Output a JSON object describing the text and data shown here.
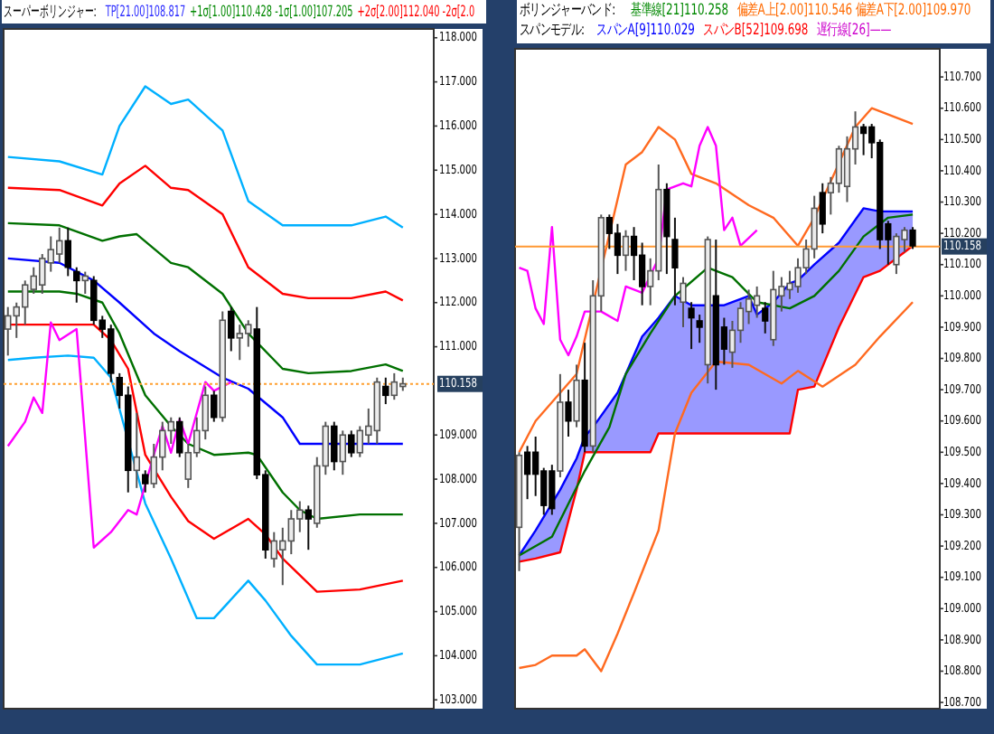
{
  "chart_data": [
    {
      "type": "candlestick",
      "title": "スーパーボリンジャー:",
      "annotations": [
        "TP[21.00]108.817",
        "+1σ[1.00]110.428 -1σ[1.00]107.205",
        "+2σ[2.00]112.040 -2σ[2.0"
      ],
      "categories": [
        null,
        null,
        null,
        null,
        null,
        null,
        null,
        null,
        null,
        null,
        null,
        null,
        null,
        null,
        null,
        null,
        null,
        null,
        null,
        null,
        null,
        null,
        null,
        null,
        null,
        null,
        null,
        null,
        null,
        null,
        null,
        null,
        null,
        null,
        null,
        null,
        null,
        null,
        null,
        null,
        null,
        null,
        null,
        null,
        null,
        null,
        null
      ],
      "ohlc": [
        [
          111.4,
          111.9,
          110.8,
          111.7
        ],
        [
          111.7,
          112.0,
          111.2,
          111.9
        ],
        [
          111.9,
          112.5,
          111.5,
          112.4
        ],
        [
          112.3,
          112.8,
          112.2,
          112.6
        ],
        [
          112.4,
          113.1,
          112.2,
          113.0
        ],
        [
          112.9,
          113.5,
          112.7,
          113.2
        ],
        [
          113.1,
          113.7,
          112.9,
          113.4
        ],
        [
          113.4,
          113.7,
          112.6,
          112.8
        ],
        [
          112.7,
          112.8,
          112.0,
          112.5
        ],
        [
          112.5,
          112.7,
          112.2,
          112.6
        ],
        [
          112.5,
          112.6,
          111.5,
          111.6
        ],
        [
          111.6,
          111.7,
          111.2,
          111.4
        ],
        [
          111.4,
          111.5,
          110.2,
          110.4
        ],
        [
          110.3,
          110.4,
          109.6,
          109.9
        ],
        [
          109.9,
          110.1,
          107.7,
          108.2
        ],
        [
          108.2,
          109.5,
          107.8,
          108.5
        ],
        [
          108.1,
          108.2,
          107.7,
          107.9
        ],
        [
          107.9,
          108.8,
          107.8,
          108.5
        ],
        [
          108.5,
          109.3,
          108.2,
          109.1
        ],
        [
          109.1,
          109.4,
          108.8,
          109.3
        ],
        [
          109.3,
          109.4,
          108.5,
          108.6
        ],
        [
          108.0,
          108.8,
          107.8,
          108.6
        ],
        [
          108.6,
          109.4,
          108.5,
          109.1
        ],
        [
          109.1,
          110.1,
          108.9,
          109.9
        ],
        [
          109.9,
          110.0,
          109.3,
          109.4
        ],
        [
          109.4,
          111.8,
          109.3,
          111.6
        ],
        [
          111.8,
          111.9,
          110.9,
          111.2
        ],
        [
          111.2,
          111.5,
          110.7,
          111.3
        ],
        [
          111.3,
          111.6,
          111.0,
          111.5
        ],
        [
          111.4,
          111.9,
          108.0,
          108.1
        ],
        [
          108.1,
          108.2,
          106.2,
          106.4
        ],
        [
          106.2,
          106.8,
          106.0,
          106.6
        ],
        [
          106.4,
          106.9,
          105.6,
          106.6
        ],
        [
          106.6,
          107.3,
          106.3,
          107.1
        ],
        [
          107.1,
          107.5,
          106.8,
          107.3
        ],
        [
          107.3,
          107.4,
          106.4,
          107.1
        ],
        [
          107.0,
          108.5,
          106.9,
          108.3
        ],
        [
          108.3,
          109.3,
          108.1,
          109.2
        ],
        [
          109.2,
          109.3,
          108.2,
          108.4
        ],
        [
          108.4,
          109.1,
          108.1,
          109.0
        ],
        [
          109.0,
          109.1,
          108.5,
          108.6
        ],
        [
          108.6,
          109.2,
          108.5,
          109.1
        ],
        [
          109.0,
          109.6,
          108.8,
          109.2
        ],
        [
          109.1,
          110.3,
          108.8,
          110.2
        ],
        [
          110.1,
          110.3,
          109.7,
          109.9
        ],
        [
          109.9,
          110.4,
          109.8,
          110.2
        ],
        [
          110.1,
          110.3,
          110.0,
          110.16
        ]
      ],
      "series": [
        {
          "type": "line",
          "color": "#00b0ff",
          "values": [
            115.3,
            null,
            null,
            null,
            null,
            null,
            115.2,
            null,
            null,
            null,
            null,
            114.9,
            null,
            116.0,
            null,
            null,
            116.9,
            null,
            null,
            116.5,
            null,
            116.6,
            null,
            null,
            null,
            115.9,
            null,
            null,
            114.3,
            null,
            null,
            null,
            113.75,
            null,
            null,
            113.75,
            null,
            null,
            null,
            null,
            113.75,
            null,
            null,
            null,
            113.95,
            null,
            113.7
          ]
        },
        {
          "type": "line",
          "color": "#ff0000",
          "values": [
            114.6,
            null,
            null,
            null,
            null,
            null,
            114.55,
            null,
            null,
            null,
            null,
            114.2,
            null,
            114.7,
            null,
            null,
            115.1,
            null,
            null,
            114.6,
            null,
            114.55,
            null,
            null,
            null,
            114.0,
            null,
            null,
            112.8,
            null,
            null,
            null,
            112.2,
            null,
            null,
            112.1,
            null,
            null,
            null,
            null,
            112.1,
            null,
            null,
            null,
            112.25,
            null,
            112.05
          ]
        },
        {
          "type": "line",
          "color": "#007000",
          "values": [
            113.8,
            null,
            null,
            null,
            null,
            null,
            113.75,
            null,
            null,
            null,
            null,
            113.4,
            null,
            113.5,
            null,
            113.55,
            null,
            null,
            null,
            112.9,
            null,
            112.8,
            null,
            null,
            null,
            112.2,
            null,
            null,
            111.3,
            null,
            null,
            null,
            110.5,
            null,
            null,
            110.4,
            null,
            null,
            null,
            null,
            110.45,
            null,
            null,
            null,
            110.6,
            null,
            110.45
          ]
        },
        {
          "type": "line",
          "color": "#0000ff",
          "values": [
            113.0,
            null,
            null,
            null,
            null,
            null,
            112.9,
            null,
            null,
            null,
            112.5,
            null,
            null,
            112.0,
            null,
            null,
            null,
            111.3,
            null,
            null,
            110.9,
            null,
            null,
            null,
            null,
            110.3,
            null,
            null,
            110.05,
            null,
            null,
            null,
            109.4,
            null,
            108.8,
            null,
            null,
            108.8,
            null,
            null,
            null,
            108.8,
            null,
            null,
            null,
            null,
            108.8
          ]
        },
        {
          "type": "line",
          "color": "#007000",
          "values": [
            112.25,
            null,
            null,
            null,
            null,
            null,
            112.25,
            null,
            112.2,
            null,
            null,
            112.0,
            null,
            111.3,
            null,
            null,
            109.9,
            null,
            null,
            109.2,
            null,
            108.8,
            null,
            null,
            108.55,
            null,
            null,
            null,
            108.6,
            108.55,
            null,
            null,
            107.7,
            null,
            107.3,
            null,
            107.1,
            null,
            null,
            null,
            null,
            107.2,
            null,
            null,
            null,
            null,
            107.2
          ]
        },
        {
          "type": "line",
          "color": "#ff0000",
          "values": [
            111.5,
            null,
            null,
            null,
            null,
            null,
            111.5,
            null,
            null,
            null,
            111.5,
            null,
            111.15,
            null,
            110.5,
            null,
            108.55,
            null,
            null,
            107.6,
            null,
            107.05,
            null,
            null,
            106.65,
            null,
            null,
            null,
            107.1,
            null,
            106.75,
            null,
            106.2,
            null,
            null,
            null,
            105.45,
            null,
            null,
            null,
            null,
            105.5,
            null,
            null,
            null,
            null,
            105.7
          ]
        },
        {
          "type": "line",
          "color": "#00b0ff",
          "values": [
            110.7,
            null,
            null,
            110.75,
            null,
            null,
            null,
            110.8,
            null,
            null,
            110.75,
            null,
            110.3,
            null,
            null,
            null,
            107.45,
            null,
            null,
            106.2,
            null,
            null,
            104.85,
            null,
            104.85,
            null,
            null,
            null,
            105.7,
            null,
            105.25,
            null,
            null,
            104.45,
            null,
            null,
            103.8,
            null,
            null,
            null,
            null,
            103.8,
            null,
            null,
            null,
            null,
            104.05
          ]
        },
        {
          "type": "line",
          "color": "#ff00ff",
          "values": [
            108.75,
            null,
            109.3,
            109.85,
            109.5,
            111.55,
            111.15,
            null,
            111.4,
            null,
            106.45,
            null,
            106.8,
            null,
            107.3,
            107.2,
            null,
            108.55,
            109.2,
            108.6,
            109.35,
            108.8,
            null,
            110.2,
            110.0,
            null,
            110.2,
            null,
            null,
            null,
            null,
            null,
            null,
            null,
            null,
            null,
            null,
            null,
            null,
            null,
            null,
            null,
            null,
            null,
            null,
            null,
            null
          ]
        }
      ],
      "ref_lines": [
        {
          "axis": "y",
          "value": 110.158,
          "label": "110.158",
          "color": "#ffa030",
          "line_style": "dotted"
        }
      ],
      "ylim": [
        102.8,
        118.2
      ],
      "yticks": [
        {
          "value": 103,
          "label": "103.000"
        },
        {
          "value": 104,
          "label": "104.000"
        },
        {
          "value": 105,
          "label": "105.000"
        },
        {
          "value": 106,
          "label": "106.000"
        },
        {
          "value": 107,
          "label": "107.000"
        },
        {
          "value": 108,
          "label": "108.000"
        },
        {
          "value": 109,
          "label": "109.000"
        },
        {
          "value": 111,
          "label": "111.000"
        },
        {
          "value": 112,
          "label": "112.000"
        },
        {
          "value": 113,
          "label": "113.000"
        },
        {
          "value": 114,
          "label": "114.000"
        },
        {
          "value": 115,
          "label": "115.000"
        },
        {
          "value": 116,
          "label": "116.000"
        },
        {
          "value": 117,
          "label": "117.000"
        },
        {
          "value": 118,
          "label": "118.000"
        }
      ],
      "tick_labels": "y"
    },
    {
      "type": "candlestick",
      "title": "ボリンジャーバンド:",
      "subtitle": "スパンモデル:",
      "annotations": [
        "基準線[21]110.258",
        "偏差A上[2.00]110.546 偏差A下[2.00]109.970",
        "スパンA[9]110.029",
        "スパンB[52]109.698",
        "遅行線[26]——"
      ],
      "categories": [
        null,
        null,
        null,
        null,
        null,
        null,
        null,
        null,
        null,
        null,
        null,
        null,
        null,
        null,
        null,
        null,
        null,
        null,
        null,
        null,
        null,
        null,
        null,
        null,
        null,
        null,
        null,
        null,
        null,
        null,
        null,
        null,
        null,
        null,
        null,
        null,
        null,
        null,
        null,
        null,
        null,
        null,
        null,
        null,
        null,
        null,
        null,
        null,
        null
      ],
      "ohlc": [
        [
          109.26,
          109.5,
          109.12,
          109.49
        ],
        [
          109.5,
          109.52,
          109.35,
          109.43
        ],
        [
          109.5,
          109.55,
          109.36,
          109.43
        ],
        [
          109.44,
          109.45,
          109.3,
          109.33
        ],
        [
          109.44,
          109.46,
          109.3,
          109.32
        ],
        [
          109.44,
          109.75,
          109.42,
          109.66
        ],
        [
          109.66,
          109.7,
          109.55,
          109.6
        ],
        [
          109.6,
          109.78,
          109.58,
          109.73
        ],
        [
          109.73,
          109.85,
          109.5,
          109.52
        ],
        [
          109.52,
          110.05,
          109.5,
          110.0
        ],
        [
          110.0,
          110.26,
          109.95,
          110.25
        ],
        [
          110.25,
          110.26,
          110.15,
          110.2
        ],
        [
          110.2,
          110.23,
          110.07,
          110.13
        ],
        [
          110.13,
          110.21,
          110.08,
          110.19
        ],
        [
          110.19,
          110.22,
          110.05,
          110.13
        ],
        [
          110.13,
          110.17,
          109.97,
          110.03
        ],
        [
          110.03,
          110.12,
          109.97,
          110.08
        ],
        [
          110.08,
          110.42,
          110.05,
          110.34
        ],
        [
          110.34,
          110.36,
          110.07,
          110.19
        ],
        [
          110.18,
          110.25,
          109.97,
          110.09
        ],
        [
          109.98,
          110.06,
          109.9,
          110.04
        ],
        [
          109.96,
          109.98,
          109.83,
          109.93
        ],
        [
          109.92,
          109.94,
          109.85,
          109.9
        ],
        [
          109.78,
          110.19,
          109.72,
          110.18
        ],
        [
          110.0,
          110.18,
          109.7,
          109.78
        ],
        [
          109.9,
          109.93,
          109.78,
          109.83
        ],
        [
          109.82,
          109.92,
          109.77,
          109.89
        ],
        [
          109.89,
          109.98,
          109.85,
          109.96
        ],
        [
          109.95,
          110.02,
          109.91,
          109.99
        ],
        [
          109.97,
          110.03,
          109.93,
          110.0
        ],
        [
          109.96,
          109.98,
          109.88,
          109.92
        ],
        [
          109.86,
          110.08,
          109.84,
          110.02
        ],
        [
          110.0,
          110.06,
          109.95,
          110.03
        ],
        [
          110.02,
          110.08,
          109.99,
          110.04
        ],
        [
          110.03,
          110.12,
          110.01,
          110.09
        ],
        [
          110.09,
          110.18,
          110.07,
          110.15
        ],
        [
          110.15,
          110.32,
          110.12,
          110.28
        ],
        [
          110.33,
          110.36,
          110.2,
          110.23
        ],
        [
          110.33,
          110.38,
          110.26,
          110.36
        ],
        [
          110.36,
          110.48,
          110.33,
          110.47
        ],
        [
          110.35,
          110.51,
          110.3,
          110.47
        ],
        [
          110.47,
          110.59,
          110.42,
          110.54
        ],
        [
          110.54,
          110.55,
          110.45,
          110.52
        ],
        [
          110.54,
          110.55,
          110.44,
          110.49
        ],
        [
          110.49,
          110.5,
          110.15,
          110.18
        ],
        [
          110.23,
          110.24,
          110.1,
          110.18
        ],
        [
          110.1,
          110.2,
          110.07,
          110.19
        ],
        [
          110.18,
          110.22,
          110.14,
          110.21
        ],
        [
          110.21,
          110.22,
          110.15,
          110.16
        ]
      ],
      "series": [
        {
          "type": "line",
          "color": "#0000ff",
          "values": [
            109.17,
            null,
            109.25,
            null,
            null,
            109.38,
            null,
            109.48,
            109.55,
            109.58,
            null,
            null,
            109.69,
            null,
            null,
            109.87,
            109.9,
            109.93,
            null,
            110.0,
            null,
            109.97,
            null,
            null,
            null,
            109.97,
            null,
            null,
            110.0,
            109.94,
            null,
            109.98,
            null,
            110.04,
            110.05,
            null,
            110.1,
            null,
            null,
            110.17,
            null,
            null,
            110.28,
            null,
            110.27,
            null,
            null,
            null,
            110.27
          ],
          "lower": [
            109.15,
            null,
            109.16,
            null,
            null,
            109.18,
            null,
            109.38,
            109.5,
            109.5,
            null,
            null,
            109.5,
            null,
            null,
            109.5,
            109.5,
            109.56,
            null,
            109.56,
            null,
            109.56,
            null,
            null,
            null,
            109.56,
            null,
            null,
            109.56,
            109.56,
            null,
            109.56,
            null,
            109.56,
            109.7,
            null,
            109.71,
            null,
            null,
            109.9,
            null,
            null,
            110.06,
            null,
            110.08,
            null,
            null,
            null,
            110.16
          ],
          "upper": [
            109.17,
            null,
            109.25,
            null,
            null,
            109.38,
            null,
            109.48,
            109.55,
            109.58,
            null,
            null,
            109.69,
            null,
            null,
            109.87,
            109.9,
            109.93,
            null,
            110.0,
            null,
            109.97,
            null,
            null,
            null,
            109.97,
            null,
            null,
            110.0,
            109.94,
            null,
            109.98,
            null,
            110.04,
            110.05,
            null,
            110.1,
            null,
            null,
            110.17,
            null,
            null,
            110.28,
            null,
            110.27,
            null,
            null,
            null,
            110.27
          ]
        },
        {
          "type": "line",
          "color": "#ff0000",
          "values": [
            109.15,
            null,
            109.16,
            null,
            null,
            109.18,
            null,
            109.38,
            109.5,
            109.5,
            null,
            null,
            109.5,
            null,
            null,
            109.5,
            109.5,
            109.56,
            null,
            109.56,
            null,
            109.56,
            null,
            null,
            null,
            109.56,
            null,
            null,
            109.56,
            109.56,
            null,
            109.56,
            null,
            109.56,
            109.7,
            null,
            109.71,
            null,
            null,
            109.9,
            null,
            null,
            110.06,
            null,
            110.08,
            null,
            null,
            null,
            110.16
          ]
        },
        {
          "type": "line",
          "color": "#ff6a20",
          "values": [
            109.5,
            null,
            109.6,
            null,
            null,
            null,
            null,
            109.75,
            null,
            null,
            null,
            null,
            null,
            110.42,
            null,
            110.46,
            null,
            110.54,
            null,
            110.5,
            null,
            110.39,
            null,
            null,
            110.36,
            null,
            null,
            null,
            110.29,
            null,
            null,
            110.25,
            null,
            null,
            110.16,
            null,
            110.25,
            null,
            null,
            null,
            null,
            110.54,
            null,
            110.6,
            null,
            null,
            null,
            null,
            110.55
          ]
        },
        {
          "type": "line",
          "color": "#ff6a20",
          "values": [
            108.81,
            null,
            108.82,
            null,
            108.85,
            null,
            null,
            108.85,
            108.87,
            null,
            108.8,
            null,
            108.92,
            null,
            109.05,
            null,
            null,
            109.25,
            null,
            109.56,
            null,
            109.69,
            null,
            null,
            109.79,
            null,
            null,
            null,
            109.78,
            null,
            null,
            null,
            109.72,
            null,
            109.76,
            null,
            null,
            109.71,
            null,
            null,
            null,
            109.78,
            null,
            null,
            109.87,
            null,
            null,
            null,
            109.98
          ]
        },
        {
          "type": "line",
          "color": "#007000",
          "values": [
            109.17,
            null,
            null,
            null,
            109.23,
            null,
            null,
            null,
            109.44,
            null,
            null,
            109.58,
            null,
            109.75,
            null,
            null,
            109.88,
            null,
            null,
            110.0,
            null,
            null,
            null,
            110.09,
            null,
            null,
            110.06,
            null,
            null,
            109.98,
            null,
            null,
            null,
            109.96,
            null,
            null,
            110.0,
            null,
            null,
            110.08,
            null,
            null,
            110.19,
            null,
            null,
            110.25,
            null,
            null,
            110.26
          ]
        },
        {
          "type": "line",
          "color": "#ff00ff",
          "values": [
            110.09,
            110.08,
            109.96,
            109.91,
            110.22,
            109.86,
            109.81,
            109.87,
            109.95,
            null,
            109.95,
            null,
            109.92,
            110.03,
            null,
            110.01,
            null,
            110.12,
            110.34,
            null,
            110.36,
            110.35,
            110.48,
            110.54,
            110.48,
            110.21,
            110.25,
            110.16,
            null,
            110.21,
            null,
            null,
            null,
            null,
            null,
            null,
            null,
            null,
            null,
            null,
            null,
            null,
            null,
            null,
            null,
            null,
            null,
            null,
            null
          ]
        }
      ],
      "ref_lines": [
        {
          "axis": "y",
          "value": 110.158,
          "label": "110.158",
          "color": "#ff9933",
          "line_style": "solid"
        }
      ],
      "ylim": [
        108.68,
        110.79
      ],
      "yticks": [
        {
          "value": 108.7,
          "label": "108.700"
        },
        {
          "value": 108.8,
          "label": "108.800"
        },
        {
          "value": 108.9,
          "label": "108.900"
        },
        {
          "value": 109.0,
          "label": "109.000"
        },
        {
          "value": 109.1,
          "label": "109.100"
        },
        {
          "value": 109.2,
          "label": "109.200"
        },
        {
          "value": 109.3,
          "label": "109.300"
        },
        {
          "value": 109.4,
          "label": "109.400"
        },
        {
          "value": 109.5,
          "label": "109.500"
        },
        {
          "value": 109.6,
          "label": "109.600"
        },
        {
          "value": 109.7,
          "label": "109.700"
        },
        {
          "value": 109.8,
          "label": "109.800"
        },
        {
          "value": 109.9,
          "label": "109.900"
        },
        {
          "value": 110.0,
          "label": "110.000"
        },
        {
          "value": 110.1,
          "label": "110.100"
        },
        {
          "value": 110.2,
          "label": "110.200"
        },
        {
          "value": 110.3,
          "label": "110.300"
        },
        {
          "value": 110.4,
          "label": "110.400"
        },
        {
          "value": 110.5,
          "label": "110.500"
        },
        {
          "value": 110.6,
          "label": "110.600"
        },
        {
          "value": 110.7,
          "label": "110.700"
        }
      ],
      "tick_labels": "y"
    }
  ]
}
